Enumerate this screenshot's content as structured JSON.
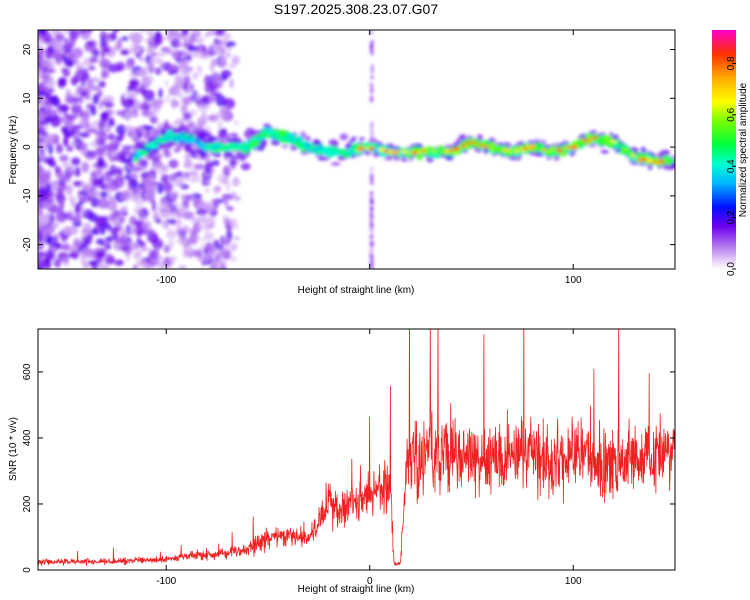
{
  "title": "S197.2025.308.23.07.G07",
  "chart_data": [
    {
      "type": "heatmap",
      "xlabel": "Height of straight line (km)",
      "ylabel": "Frequency (Hz)",
      "xlim": [
        -163,
        150
      ],
      "ylim": [
        -25,
        24
      ],
      "x_ticks": [
        -100,
        0,
        100
      ],
      "x_tick_labels": [
        "-100",
        "",
        "100"
      ],
      "y_ticks": [
        -20,
        -10,
        0,
        10,
        20
      ],
      "y_tick_labels": [
        "-20",
        "-10",
        "0",
        "10",
        "20"
      ],
      "colorbar": {
        "label": "Normalized spectral amplitude",
        "range": [
          0,
          0.93
        ],
        "ticks": [
          0.0,
          0.2,
          0.4,
          0.6,
          0.8
        ],
        "tick_labels": [
          "0.0",
          "0.2",
          "0.4",
          "0.6",
          "0.8"
        ]
      },
      "description_series": {
        "name": "dominant frequency ridge",
        "x": [
          -115,
          -100,
          -90,
          -80,
          -70,
          -60,
          -50,
          -40,
          -30,
          -20,
          -10,
          0,
          10,
          20,
          30,
          40,
          50,
          60,
          70,
          80,
          90,
          100,
          110,
          120,
          130,
          140,
          148
        ],
        "y": [
          -2,
          2,
          2,
          0,
          0,
          0,
          3,
          2,
          0,
          -1,
          -1,
          0,
          -1,
          -1,
          -1,
          -1,
          1,
          0,
          -1,
          0,
          -1,
          0,
          2,
          1,
          -2,
          -3,
          -3
        ]
      }
    },
    {
      "type": "line",
      "xlabel": "Height of straight line (km)",
      "ylabel": "SNR (10 * v/v)",
      "xlim": [
        -163,
        150
      ],
      "ylim": [
        0,
        730
      ],
      "x_ticks": [
        -100,
        0,
        100
      ],
      "x_tick_labels": [
        "-100",
        "0",
        "100"
      ],
      "y_ticks": [
        0,
        200,
        400,
        600
      ],
      "y_tick_labels": [
        "0",
        "200",
        "400",
        "600"
      ],
      "color": "#ee2222",
      "series": [
        {
          "name": "SNR envelope",
          "x": [
            -163,
            -140,
            -120,
            -100,
            -90,
            -80,
            -70,
            -60,
            -50,
            -40,
            -30,
            -25,
            -20,
            -15,
            -10,
            -5,
            0,
            5,
            10,
            12,
            15,
            18,
            20,
            25,
            30,
            40,
            50,
            60,
            70,
            80,
            90,
            100,
            110,
            120,
            130,
            140,
            150
          ],
          "y": [
            25,
            25,
            27,
            32,
            40,
            45,
            50,
            65,
            95,
            110,
            90,
            150,
            210,
            175,
            190,
            215,
            225,
            235,
            250,
            20,
            20,
            300,
            380,
            320,
            370,
            360,
            320,
            350,
            340,
            360,
            320,
            360,
            330,
            320,
            340,
            330,
            380
          ]
        }
      ]
    }
  ]
}
